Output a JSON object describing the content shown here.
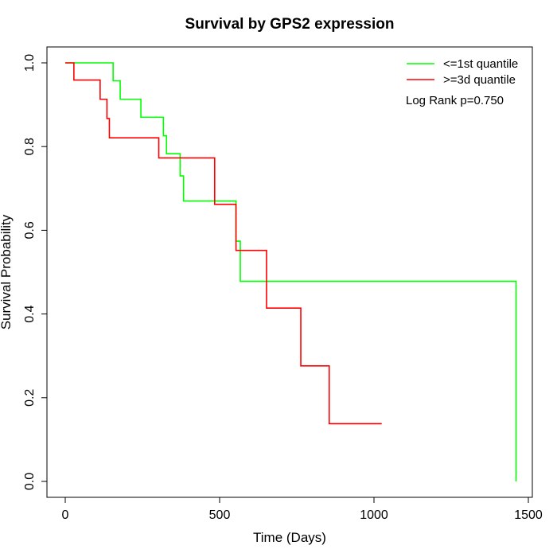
{
  "chart_data": {
    "type": "line",
    "title": "Survival by GPS2 expression",
    "xlabel": "Time (Days)",
    "ylabel": "Survival Probability",
    "xlim": [
      0,
      1500
    ],
    "ylim": [
      0,
      1
    ],
    "x_ticks": [
      0,
      500,
      1000,
      1500
    ],
    "y_ticks": [
      0.0,
      0.2,
      0.4,
      0.6,
      0.8,
      1.0
    ],
    "x_tick_labels": [
      "0",
      "500",
      "1000",
      "1500"
    ],
    "y_tick_labels": [
      "0.0",
      "0.2",
      "0.4",
      "0.6",
      "0.8",
      "1.0"
    ],
    "grid": false,
    "legend_position": "top-right",
    "annotation": "Log Rank p=0.750",
    "series": [
      {
        "name": "<=1st quantile",
        "color": "#00ff00",
        "step": true,
        "points": [
          [
            0,
            1.0
          ],
          [
            155,
            0.957
          ],
          [
            178,
            0.913
          ],
          [
            245,
            0.87
          ],
          [
            318,
            0.826
          ],
          [
            328,
            0.783
          ],
          [
            372,
            0.73
          ],
          [
            383,
            0.67
          ],
          [
            553,
            0.574
          ],
          [
            567,
            0.478
          ],
          [
            1460,
            0.0
          ]
        ]
      },
      {
        "name": ">=3d quantile",
        "color": "#ff0000",
        "step": true,
        "points": [
          [
            0,
            1.0
          ],
          [
            28,
            0.959
          ],
          [
            113,
            0.913
          ],
          [
            135,
            0.867
          ],
          [
            143,
            0.821
          ],
          [
            303,
            0.773
          ],
          [
            484,
            0.662
          ],
          [
            553,
            0.552
          ],
          [
            652,
            0.414
          ],
          [
            763,
            0.276
          ],
          [
            855,
            0.138
          ],
          [
            1025,
            0.138
          ]
        ]
      }
    ]
  }
}
